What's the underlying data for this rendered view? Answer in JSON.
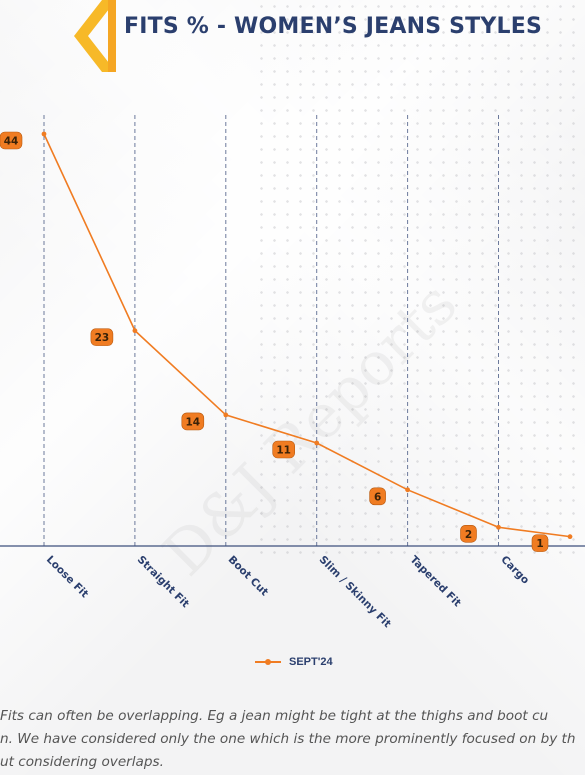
{
  "header": {
    "title": "FITS % - WOMEN’S JEANS STYLES"
  },
  "chart_data": {
    "type": "line",
    "title": "FITS % - WOMEN’S JEANS STYLES",
    "categories": [
      "Loose Fit",
      "Straight Fit",
      "Boot Cut",
      "Slim / Skinny Fit",
      "Tapered Fit",
      "Cargo",
      ""
    ],
    "series": [
      {
        "name": "SEPT'24",
        "values": [
          44,
          23,
          14,
          11,
          6,
          2,
          1
        ]
      }
    ],
    "ylim": [
      0,
      46
    ],
    "grid": "vertical dashed lines at categories",
    "legend": "bottom-center",
    "colors": {
      "line": "#f07c22",
      "label_bg": "#f07c22",
      "grid": "#3d4f7c",
      "axis": "#3d4f7c"
    }
  },
  "footnote": {
    "line1": "Fits can often be overlapping. Eg a jean might be tight at the thighs and boot cu",
    "line2": "n. We have considered only the one which is the more prominently focused on by th",
    "line3": "ut considering overlaps."
  },
  "watermark": "D&J Reports"
}
